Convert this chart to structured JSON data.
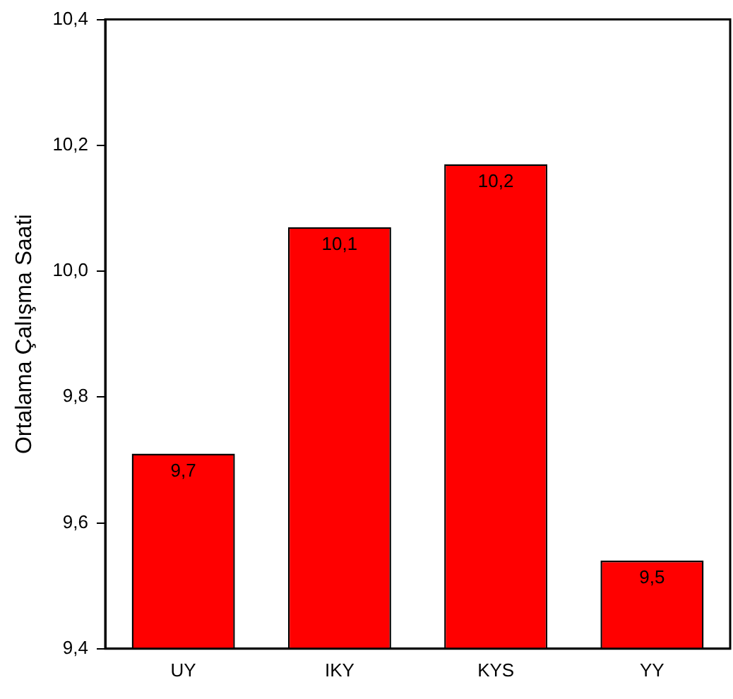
{
  "chart_data": {
    "type": "bar",
    "ylabel": "Ortalama Çalışma Saati",
    "categories": [
      "UY",
      "IKY",
      "KYS",
      "YY"
    ],
    "values": [
      9.71,
      10.07,
      10.17,
      9.54
    ],
    "color": "#ff0000",
    "value_labels": [
      "9,7",
      "10,1",
      "10,2",
      "9,5"
    ],
    "ylim": [
      9.4,
      10.4
    ],
    "yticks": [
      {
        "value": 9.4,
        "label": "9,4"
      },
      {
        "value": 9.6,
        "label": "9,6"
      },
      {
        "value": 9.8,
        "label": "9,8"
      },
      {
        "value": 10.0,
        "label": "10,0"
      },
      {
        "value": 10.2,
        "label": "10,2"
      },
      {
        "value": 10.4,
        "label": "10,4"
      }
    ],
    "grid": false,
    "legend": false
  }
}
